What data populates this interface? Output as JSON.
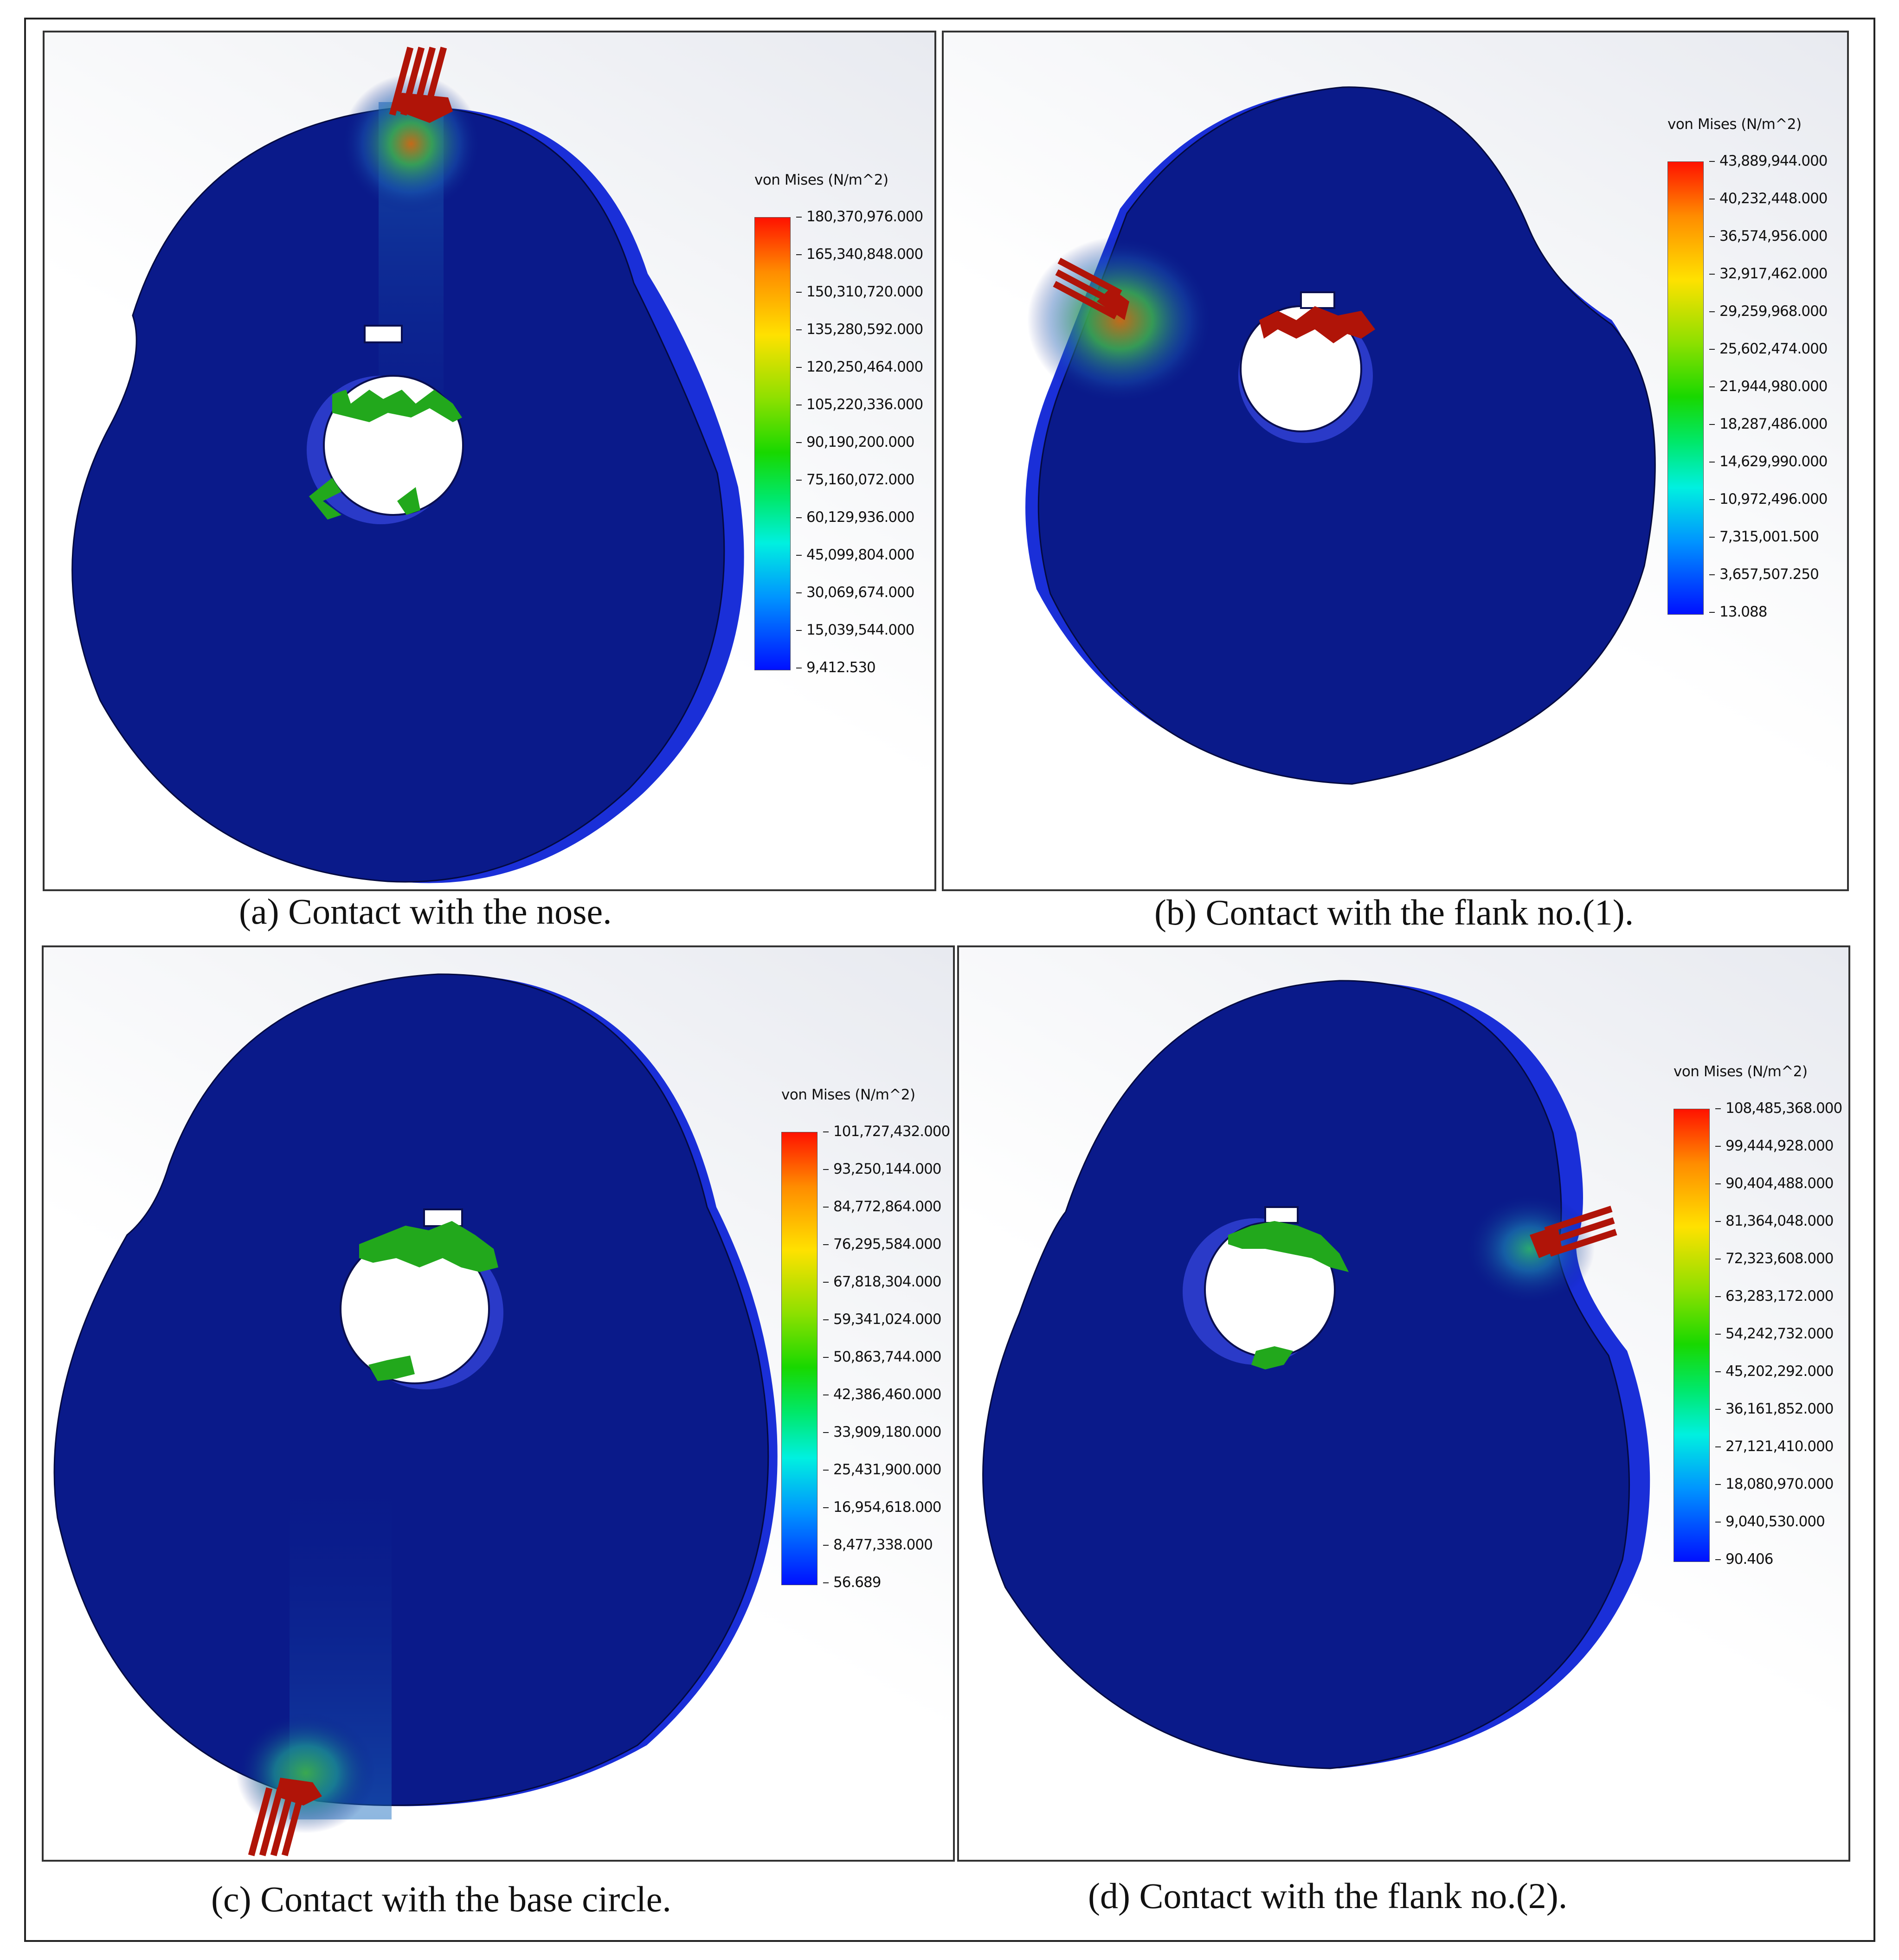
{
  "panels": [
    {
      "caption": "(a) Contact with the nose.",
      "legend": {
        "title": "von Mises (N/m^2)",
        "ticks": [
          "180,370,976.000",
          "165,340,848.000",
          "150,310,720.000",
          "135,280,592.000",
          "120,250,464.000",
          "105,220,336.000",
          "90,190,200.000",
          "75,160,072.000",
          "60,129,936.000",
          "45,099,804.000",
          "30,069,674.000",
          "15,039,544.000",
          "9,412.530"
        ]
      }
    },
    {
      "caption": "(b) Contact with the flank no.(1).",
      "legend": {
        "title": "von Mises (N/m^2)",
        "ticks": [
          "43,889,944.000",
          "40,232,448.000",
          "36,574,956.000",
          "32,917,462.000",
          "29,259,968.000",
          "25,602,474.000",
          "21,944,980.000",
          "18,287,486.000",
          "14,629,990.000",
          "10,972,496.000",
          "7,315,001.500",
          "3,657,507.250",
          "13.088"
        ]
      }
    },
    {
      "caption": "(c) Contact with the base circle.",
      "legend": {
        "title": "von Mises (N/m^2)",
        "ticks": [
          "101,727,432.000",
          "93,250,144.000",
          "84,772,864.000",
          "76,295,584.000",
          "67,818,304.000",
          "59,341,024.000",
          "50,863,744.000",
          "42,386,460.000",
          "33,909,180.000",
          "25,431,900.000",
          "16,954,618.000",
          "8,477,338.000",
          "56.689"
        ]
      }
    },
    {
      "caption": "(d) Contact with the flank no.(2).",
      "legend": {
        "title": "von Mises (N/m^2)",
        "ticks": [
          "108,485,368.000",
          "99,444,928.000",
          "90,404,488.000",
          "81,364,048.000",
          "72,323,608.000",
          "63,283,172.000",
          "54,242,732.000",
          "45,202,292.000",
          "36,161,852.000",
          "27,121,410.000",
          "18,080,970.000",
          "9,040,530.000",
          "90.406"
        ]
      }
    }
  ],
  "colors": {
    "cam_body": "#0a1a8a",
    "cam_rim": "#1a2fd8",
    "load_arrow": "#b01408",
    "fixture_arrow": "#22a81c",
    "colorbar_top": "#ff1200",
    "colorbar_bottom": "#0010ff"
  }
}
